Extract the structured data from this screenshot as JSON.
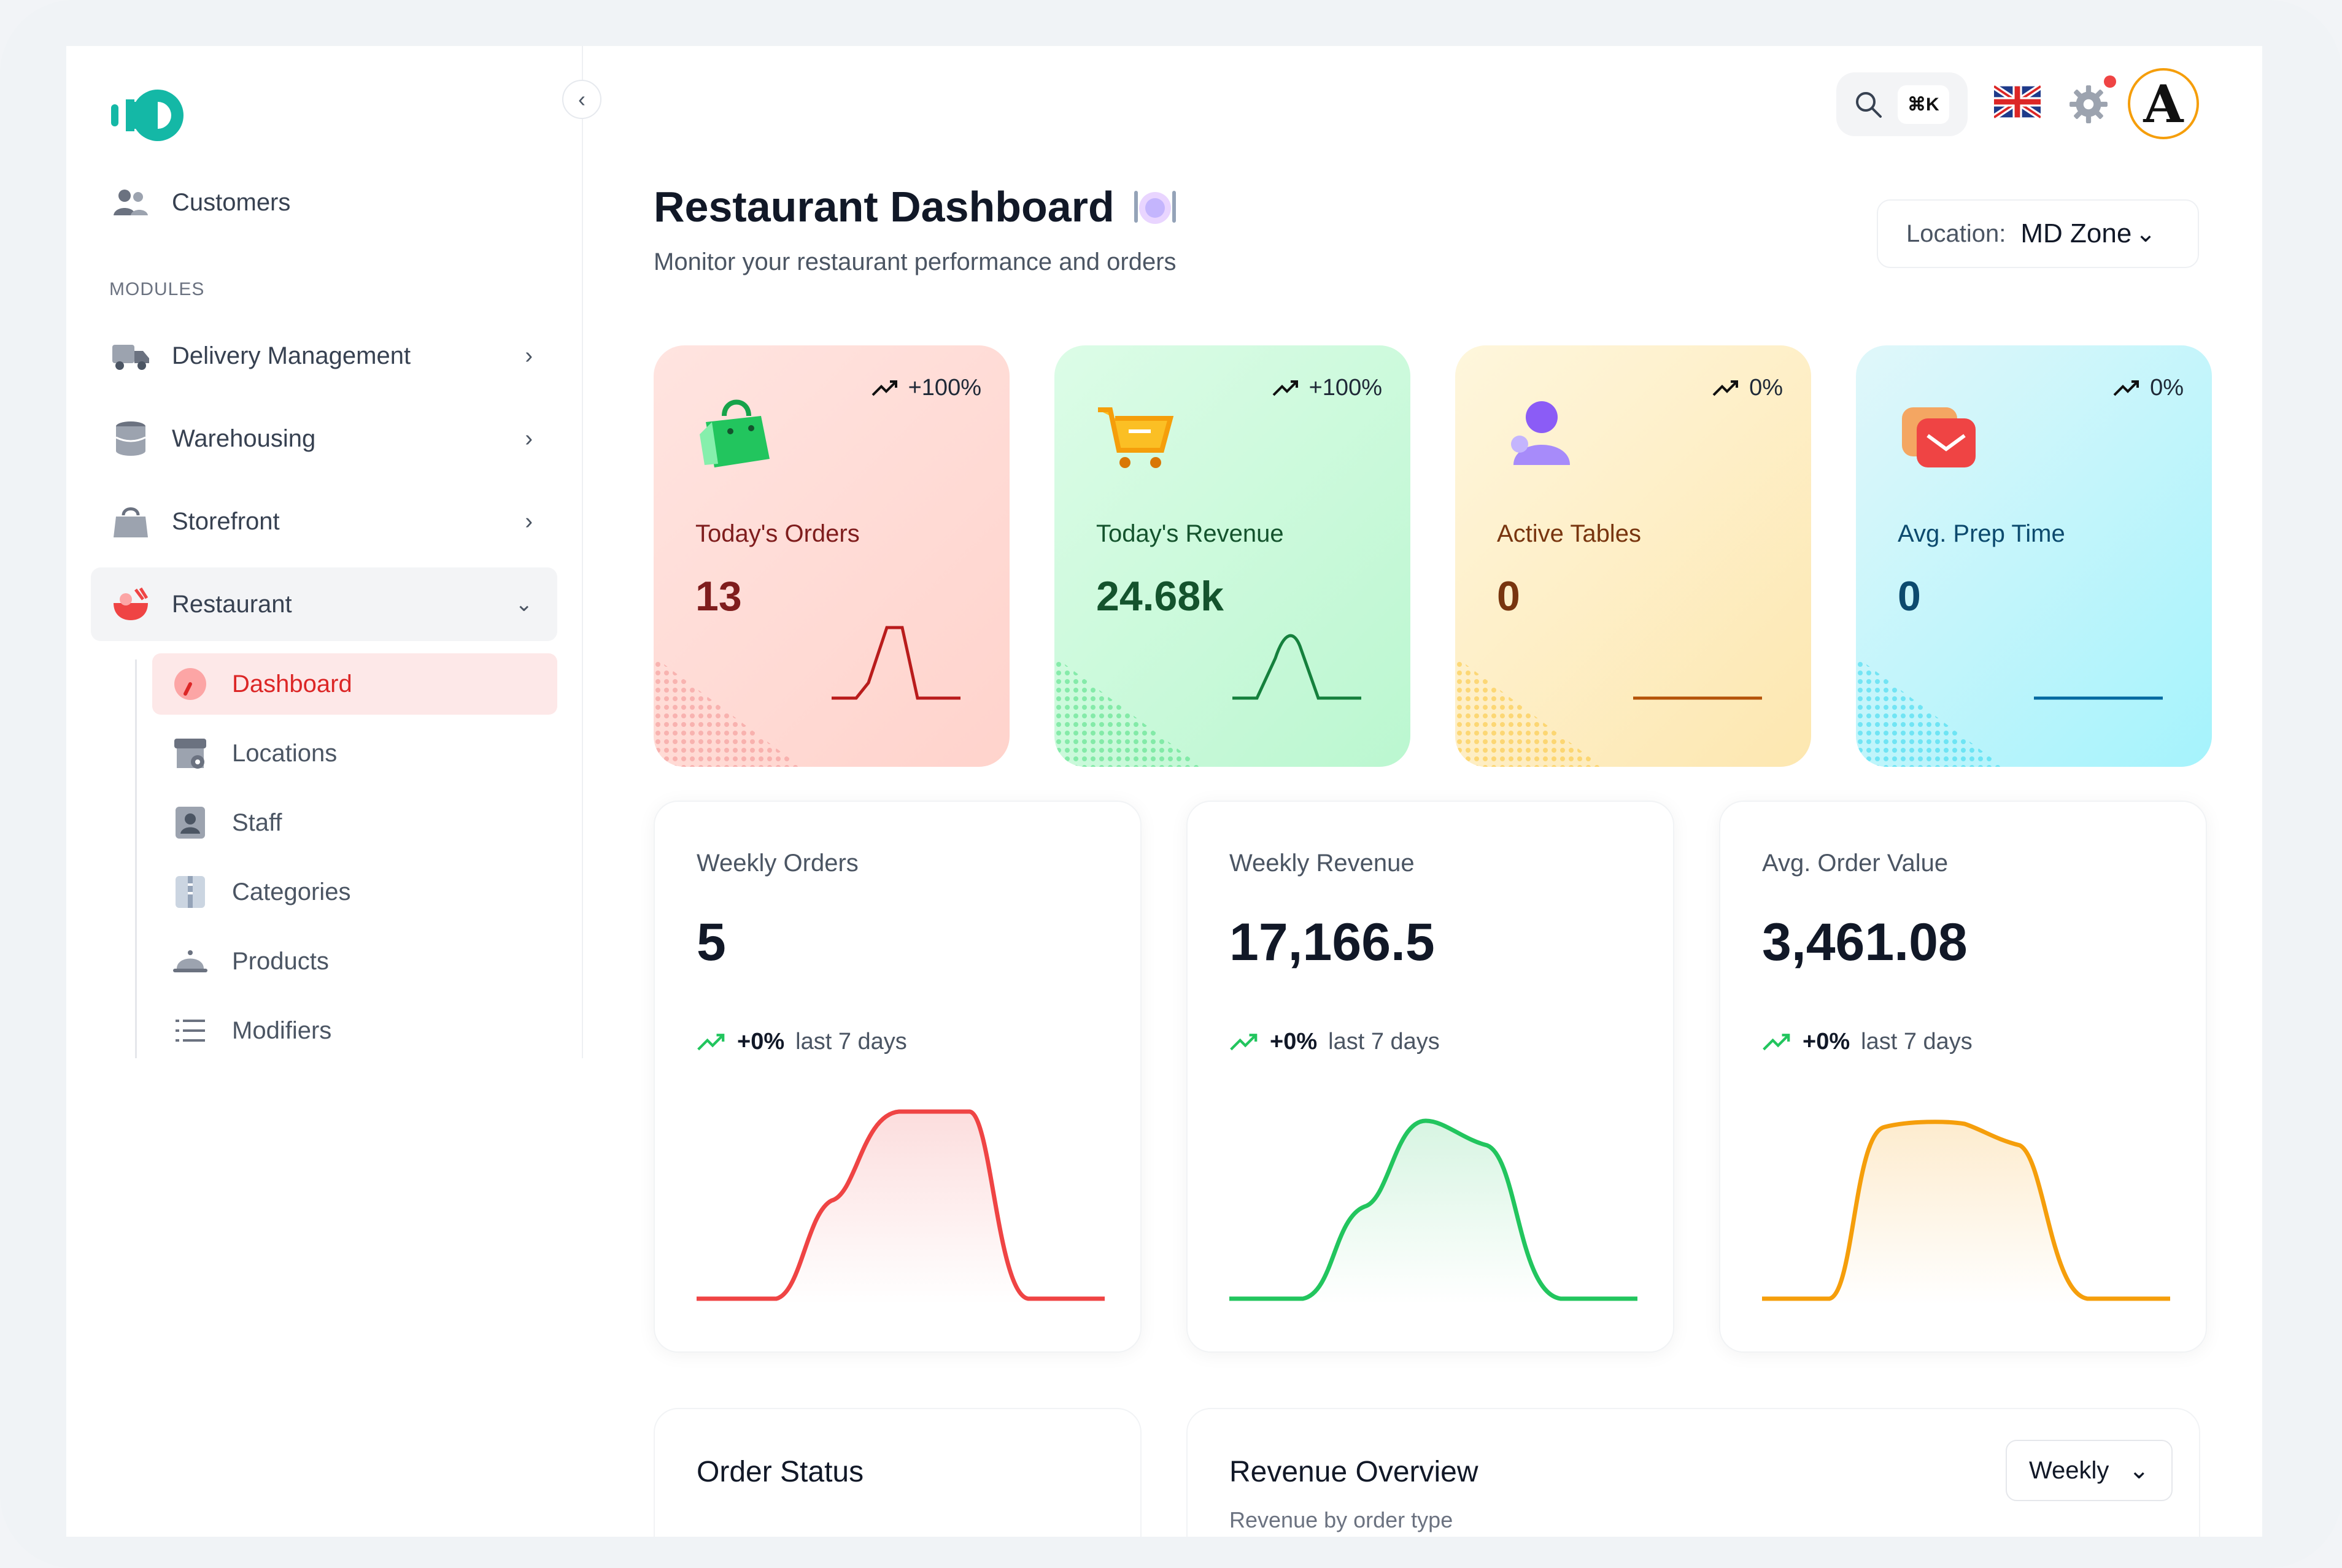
{
  "sidebar": {
    "customers": "Customers",
    "modules_heading": "MODULES",
    "items": [
      {
        "label": "Delivery Management",
        "icon": "truck-icon"
      },
      {
        "label": "Warehousing",
        "icon": "database-icon"
      },
      {
        "label": "Storefront",
        "icon": "shopping-bag-icon"
      },
      {
        "label": "Restaurant",
        "icon": "restaurant-icon"
      }
    ],
    "sub_items": [
      {
        "label": "Dashboard",
        "icon": "gauge-icon"
      },
      {
        "label": "Locations",
        "icon": "store-icon"
      },
      {
        "label": "Staff",
        "icon": "person-badge-icon"
      },
      {
        "label": "Categories",
        "icon": "folder-icon"
      },
      {
        "label": "Products",
        "icon": "cloche-icon"
      },
      {
        "label": "Modifiers",
        "icon": "list-icon"
      }
    ]
  },
  "topbar": {
    "search_shortcut": "⌘K",
    "avatar_letter": "A"
  },
  "header": {
    "title": "Restaurant Dashboard",
    "subtitle": "Monitor your restaurant performance and orders",
    "location_label": "Location:",
    "location_value": "MD Zone"
  },
  "stats": [
    {
      "label": "Today's Orders",
      "value": "13",
      "change": "+100%",
      "color": "#e04b4b",
      "text_color": "#7f1d1d"
    },
    {
      "label": "Today's Revenue",
      "value": "24.68k",
      "change": "+100%",
      "color": "#16a34a",
      "text_color": "#14532d"
    },
    {
      "label": "Active Tables",
      "value": "0",
      "change": "0%",
      "color": "#d97706",
      "text_color": "#78350f"
    },
    {
      "label": "Avg. Prep Time",
      "value": "0",
      "change": "0%",
      "color": "#0369a1",
      "text_color": "#0c4a6e"
    }
  ],
  "weekly": [
    {
      "label": "Weekly Orders",
      "value": "5",
      "trend_value": "+0%",
      "trend_text": "last 7 days",
      "color": "#ef4444"
    },
    {
      "label": "Weekly Revenue",
      "value": "17,166.5",
      "trend_value": "+0%",
      "trend_text": "last 7 days",
      "color": "#22c55e"
    },
    {
      "label": "Avg. Order Value",
      "value": "3,461.08",
      "trend_value": "+0%",
      "trend_text": "last 7 days",
      "color": "#f59e0b"
    }
  ],
  "bottom": {
    "order_status_title": "Order Status",
    "revenue_title": "Revenue Overview",
    "revenue_subtitle": "Revenue by order type",
    "period": "Weekly"
  }
}
